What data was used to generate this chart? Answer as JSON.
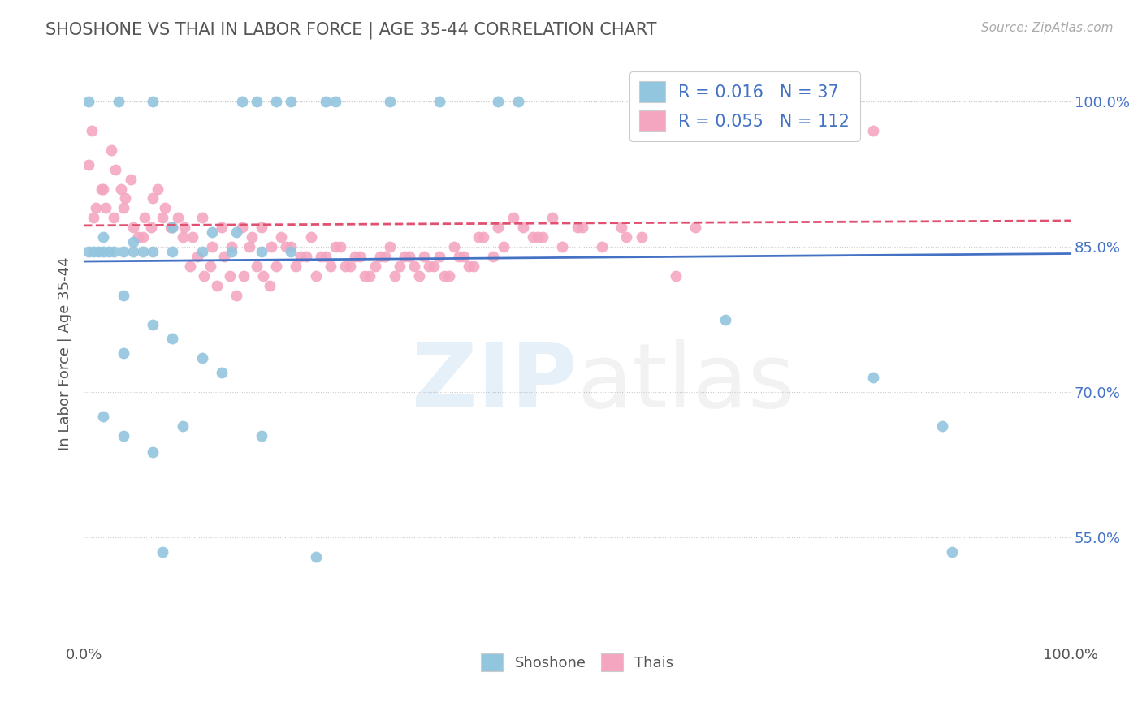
{
  "title": "SHOSHONE VS THAI IN LABOR FORCE | AGE 35-44 CORRELATION CHART",
  "source_text": "Source: ZipAtlas.com",
  "ylabel": "In Labor Force | Age 35-44",
  "xlim": [
    0,
    1
  ],
  "ylim": [
    0.44,
    1.04
  ],
  "xtick_labels": [
    "0.0%",
    "",
    "",
    "",
    "",
    "100.0%"
  ],
  "ytick_labels": [
    "55.0%",
    "70.0%",
    "85.0%",
    "100.0%"
  ],
  "yticks": [
    0.55,
    0.7,
    0.85,
    1.0
  ],
  "shoshone_R": 0.016,
  "shoshone_N": 37,
  "thai_R": 0.055,
  "thai_N": 112,
  "shoshone_color": "#92C5DE",
  "thai_color": "#F4A6C0",
  "shoshone_line_color": "#4472C4",
  "thai_line_color": "#E05070",
  "background_color": "#ffffff",
  "shoshone_x": [
    0.005,
    0.035,
    0.07,
    0.16,
    0.175,
    0.195,
    0.21,
    0.245,
    0.255,
    0.31,
    0.36,
    0.42,
    0.44,
    0.02,
    0.05,
    0.09,
    0.13,
    0.155,
    0.005,
    0.01,
    0.015,
    0.02,
    0.025,
    0.03,
    0.04,
    0.05,
    0.06,
    0.07,
    0.09,
    0.12,
    0.15,
    0.18,
    0.21,
    0.65,
    0.8,
    0.87,
    0.88
  ],
  "shoshone_y": [
    1.0,
    1.0,
    1.0,
    1.0,
    1.0,
    1.0,
    1.0,
    1.0,
    1.0,
    1.0,
    1.0,
    1.0,
    1.0,
    0.86,
    0.855,
    0.87,
    0.865,
    0.865,
    0.845,
    0.845,
    0.845,
    0.845,
    0.845,
    0.845,
    0.845,
    0.845,
    0.845,
    0.845,
    0.845,
    0.845,
    0.845,
    0.845,
    0.845,
    0.775,
    0.715,
    0.665,
    0.535
  ],
  "shoshone_low_x": [
    0.02,
    0.04,
    0.07,
    0.04,
    0.1,
    0.04,
    0.07,
    0.09,
    0.12,
    0.14,
    0.18,
    0.235,
    0.08
  ],
  "shoshone_low_y": [
    0.675,
    0.655,
    0.638,
    0.74,
    0.665,
    0.8,
    0.77,
    0.755,
    0.735,
    0.72,
    0.655,
    0.53,
    0.535
  ],
  "thai_x": [
    0.005,
    0.008,
    0.012,
    0.018,
    0.022,
    0.028,
    0.032,
    0.038,
    0.042,
    0.048,
    0.055,
    0.062,
    0.068,
    0.075,
    0.082,
    0.088,
    0.095,
    0.102,
    0.108,
    0.115,
    0.122,
    0.128,
    0.135,
    0.142,
    0.148,
    0.155,
    0.162,
    0.168,
    0.175,
    0.182,
    0.188,
    0.195,
    0.205,
    0.215,
    0.225,
    0.235,
    0.245,
    0.255,
    0.265,
    0.275,
    0.285,
    0.295,
    0.305,
    0.315,
    0.325,
    0.335,
    0.345,
    0.355,
    0.365,
    0.375,
    0.385,
    0.395,
    0.405,
    0.415,
    0.425,
    0.435,
    0.445,
    0.455,
    0.465,
    0.475,
    0.485,
    0.505,
    0.525,
    0.545,
    0.565,
    0.01,
    0.02,
    0.03,
    0.04,
    0.05,
    0.06,
    0.07,
    0.08,
    0.09,
    0.1,
    0.11,
    0.12,
    0.13,
    0.14,
    0.15,
    0.16,
    0.17,
    0.18,
    0.19,
    0.2,
    0.21,
    0.22,
    0.23,
    0.24,
    0.25,
    0.26,
    0.27,
    0.28,
    0.29,
    0.3,
    0.31,
    0.32,
    0.33,
    0.34,
    0.35,
    0.36,
    0.37,
    0.38,
    0.39,
    0.4,
    0.42,
    0.46,
    0.5,
    0.55,
    0.6,
    0.62,
    0.8
  ],
  "thai_y": [
    0.935,
    0.97,
    0.89,
    0.91,
    0.89,
    0.95,
    0.93,
    0.91,
    0.9,
    0.92,
    0.86,
    0.88,
    0.87,
    0.91,
    0.89,
    0.87,
    0.88,
    0.87,
    0.83,
    0.84,
    0.82,
    0.83,
    0.81,
    0.84,
    0.82,
    0.8,
    0.82,
    0.85,
    0.83,
    0.82,
    0.81,
    0.83,
    0.85,
    0.83,
    0.84,
    0.82,
    0.84,
    0.85,
    0.83,
    0.84,
    0.82,
    0.83,
    0.84,
    0.82,
    0.84,
    0.83,
    0.84,
    0.83,
    0.82,
    0.85,
    0.84,
    0.83,
    0.86,
    0.84,
    0.85,
    0.88,
    0.87,
    0.86,
    0.86,
    0.88,
    0.85,
    0.87,
    0.85,
    0.87,
    0.86,
    0.88,
    0.91,
    0.88,
    0.89,
    0.87,
    0.86,
    0.9,
    0.88,
    0.87,
    0.86,
    0.86,
    0.88,
    0.85,
    0.87,
    0.85,
    0.87,
    0.86,
    0.87,
    0.85,
    0.86,
    0.85,
    0.84,
    0.86,
    0.84,
    0.83,
    0.85,
    0.83,
    0.84,
    0.82,
    0.84,
    0.85,
    0.83,
    0.84,
    0.82,
    0.83,
    0.84,
    0.82,
    0.84,
    0.83,
    0.86,
    0.87,
    0.86,
    0.87,
    0.86,
    0.82,
    0.87,
    0.97
  ],
  "shoshone_line_x0": 0.0,
  "shoshone_line_y0": 0.835,
  "shoshone_line_x1": 1.0,
  "shoshone_line_y1": 0.843,
  "thai_line_x0": 0.0,
  "thai_line_y0": 0.872,
  "thai_line_x1": 1.0,
  "thai_line_y1": 0.877
}
